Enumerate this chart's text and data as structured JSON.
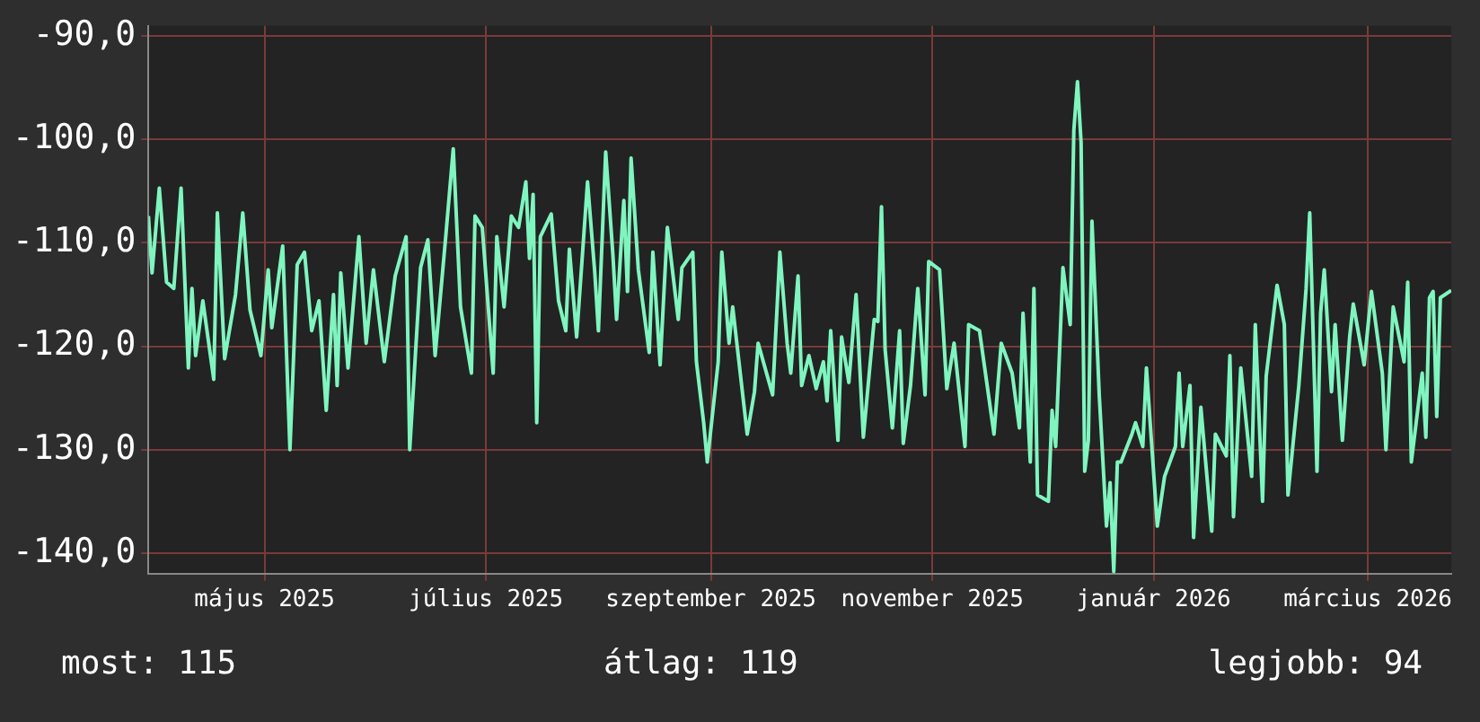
{
  "chart_data": {
    "type": "line",
    "annotations": [
      "most: 115",
      "átlag: 119",
      "legjobb: 94"
    ],
    "xlim": [
      "2025-03-30",
      "2026-03-24"
    ],
    "xticks": [
      {
        "value": "2025-05-01",
        "label": "május 2025"
      },
      {
        "value": "2025-07-01",
        "label": "július 2025"
      },
      {
        "value": "2025-09-01",
        "label": "szeptember 2025"
      },
      {
        "value": "2025-11-01",
        "label": "november 2025"
      },
      {
        "value": "2026-01-01",
        "label": "január 2026"
      },
      {
        "value": "2026-03-01",
        "label": "március 2026"
      }
    ],
    "ylim": [
      -142,
      -89
    ],
    "yticks": [
      {
        "value": -90,
        "label": "-90,0"
      },
      {
        "value": -100,
        "label": "-100,0"
      },
      {
        "value": -110,
        "label": "-110,0"
      },
      {
        "value": -120,
        "label": "-120,0"
      },
      {
        "value": -130,
        "label": "-130,0"
      },
      {
        "value": -140,
        "label": "-140,0"
      }
    ],
    "grid": true,
    "legend": false,
    "marker": "none",
    "line_style": "solid",
    "x": [
      "2025-03-30",
      "2025-03-31",
      "2025-04-02",
      "2025-04-04",
      "2025-04-06",
      "2025-04-08",
      "2025-04-10",
      "2025-04-11",
      "2025-04-12",
      "2025-04-14",
      "2025-04-17",
      "2025-04-18",
      "2025-04-20",
      "2025-04-23",
      "2025-04-25",
      "2025-04-27",
      "2025-04-30",
      "2025-05-02",
      "2025-05-03",
      "2025-05-06",
      "2025-05-08",
      "2025-05-10",
      "2025-05-12",
      "2025-05-14",
      "2025-05-16",
      "2025-05-18",
      "2025-05-20",
      "2025-05-21",
      "2025-05-22",
      "2025-05-24",
      "2025-05-27",
      "2025-05-29",
      "2025-05-31",
      "2025-06-03",
      "2025-06-06",
      "2025-06-09",
      "2025-06-10",
      "2025-06-13",
      "2025-06-15",
      "2025-06-17",
      "2025-06-20",
      "2025-06-22",
      "2025-06-24",
      "2025-06-27",
      "2025-06-28",
      "2025-06-30",
      "2025-07-03",
      "2025-07-04",
      "2025-07-06",
      "2025-07-08",
      "2025-07-10",
      "2025-07-12",
      "2025-07-13",
      "2025-07-14",
      "2025-07-15",
      "2025-07-16",
      "2025-07-19",
      "2025-07-21",
      "2025-07-23",
      "2025-07-24",
      "2025-07-26",
      "2025-07-29",
      "2025-07-31",
      "2025-08-01",
      "2025-08-03",
      "2025-08-05",
      "2025-08-06",
      "2025-08-08",
      "2025-08-09",
      "2025-08-10",
      "2025-08-12",
      "2025-08-15",
      "2025-08-16",
      "2025-08-18",
      "2025-08-20",
      "2025-08-23",
      "2025-08-24",
      "2025-08-27",
      "2025-08-28",
      "2025-08-30",
      "2025-08-31",
      "2025-09-03",
      "2025-09-04",
      "2025-09-06",
      "2025-09-07",
      "2025-09-11",
      "2025-09-13",
      "2025-09-14",
      "2025-09-18",
      "2025-09-20",
      "2025-09-22",
      "2025-09-23",
      "2025-09-25",
      "2025-09-26",
      "2025-09-28",
      "2025-09-30",
      "2025-10-02",
      "2025-10-03",
      "2025-10-04",
      "2025-10-06",
      "2025-10-07",
      "2025-10-09",
      "2025-10-11",
      "2025-10-13",
      "2025-10-16",
      "2025-10-17",
      "2025-10-18",
      "2025-10-19",
      "2025-10-21",
      "2025-10-23",
      "2025-10-24",
      "2025-10-26",
      "2025-10-28",
      "2025-10-30",
      "2025-10-31",
      "2025-11-03",
      "2025-11-05",
      "2025-11-07",
      "2025-11-10",
      "2025-11-11",
      "2025-11-14",
      "2025-11-16",
      "2025-11-18",
      "2025-11-20",
      "2025-11-23",
      "2025-11-25",
      "2025-11-26",
      "2025-11-28",
      "2025-11-29",
      "2025-11-30",
      "2025-12-03",
      "2025-12-04",
      "2025-12-05",
      "2025-12-07",
      "2025-12-09",
      "2025-12-10",
      "2025-12-11",
      "2025-12-12",
      "2025-12-13",
      "2025-12-14",
      "2025-12-15",
      "2025-12-17",
      "2025-12-19",
      "2025-12-20",
      "2025-12-21",
      "2025-12-22",
      "2025-12-23",
      "2025-12-26",
      "2025-12-27",
      "2025-12-29",
      "2025-12-30",
      "2026-01-02",
      "2026-01-04",
      "2026-01-07",
      "2026-01-08",
      "2026-01-09",
      "2026-01-11",
      "2026-01-12",
      "2026-01-14",
      "2026-01-17",
      "2026-01-18",
      "2026-01-21",
      "2026-01-22",
      "2026-01-23",
      "2026-01-25",
      "2026-01-28",
      "2026-01-29",
      "2026-01-31",
      "2026-02-01",
      "2026-02-04",
      "2026-02-06",
      "2026-02-07",
      "2026-02-10",
      "2026-02-12",
      "2026-02-13",
      "2026-02-15",
      "2026-02-16",
      "2026-02-17",
      "2026-02-19",
      "2026-02-20",
      "2026-02-22",
      "2026-02-24",
      "2026-02-25",
      "2026-02-28",
      "2026-03-02",
      "2026-03-05",
      "2026-03-06",
      "2026-03-08",
      "2026-03-11",
      "2026-03-12",
      "2026-03-13",
      "2026-03-16",
      "2026-03-17",
      "2026-03-18",
      "2026-03-19",
      "2026-03-20",
      "2026-03-21",
      "2026-03-24"
    ],
    "series": [
      {
        "color": "#7ff5bf",
        "values": [
          -107.4,
          -112.9,
          -104.7,
          -113.8,
          -114.4,
          -104.7,
          -122.1,
          -114.4,
          -120.9,
          -115.6,
          -123.2,
          -107.1,
          -121.2,
          -115,
          -107.1,
          -116.5,
          -120.9,
          -112.6,
          -118.2,
          -110.3,
          -130,
          -112.1,
          -110.9,
          -118.5,
          -115.6,
          -126.2,
          -115,
          -123.8,
          -112.9,
          -122.1,
          -109.4,
          -119.7,
          -112.6,
          -121.5,
          -113.2,
          -109.4,
          -130,
          -112.4,
          -109.7,
          -120.9,
          -109.1,
          -100.9,
          -116.2,
          -122.6,
          -107.4,
          -108.5,
          -122.6,
          -109.4,
          -116.2,
          -107.4,
          -108.5,
          -104.1,
          -111.5,
          -105.3,
          -127.4,
          -109.4,
          -107.2,
          -115.6,
          -118.5,
          -110.6,
          -119.1,
          -104.1,
          -112.9,
          -118.5,
          -101.2,
          -111.2,
          -117.4,
          -105.9,
          -114.7,
          -101.8,
          -112.6,
          -120.6,
          -110.9,
          -121.8,
          -108.5,
          -117.4,
          -112.4,
          -110.9,
          -121.5,
          -127.4,
          -131.2,
          -121.5,
          -110.9,
          -119.7,
          -116.2,
          -128.5,
          -124.4,
          -119.7,
          -124.7,
          -110.9,
          -119.7,
          -122.6,
          -113.2,
          -123.8,
          -120.9,
          -124.1,
          -121.5,
          -125.3,
          -118.5,
          -129.1,
          -119.1,
          -123.5,
          -115,
          -128.8,
          -117.4,
          -117.6,
          -106.5,
          -120.3,
          -127.9,
          -118.5,
          -129.4,
          -123.8,
          -114.4,
          -124.7,
          -111.8,
          -112.6,
          -124.1,
          -119.7,
          -129.7,
          -117.9,
          -118.5,
          -123.5,
          -128.5,
          -119.7,
          -122.6,
          -127.9,
          -116.8,
          -131.2,
          -114.4,
          -134.4,
          -135,
          -126.2,
          -129.7,
          -112.4,
          -117.9,
          -99.1,
          -94.4,
          -100.3,
          -132.1,
          -129.1,
          -107.9,
          -124.7,
          -137.4,
          -133.2,
          -141.8,
          -131.2,
          -131.2,
          -128.5,
          -127.4,
          -129.7,
          -122.1,
          -137.4,
          -132.6,
          -129.7,
          -122.6,
          -129.7,
          -123.8,
          -138.5,
          -125.9,
          -137.9,
          -128.5,
          -130.6,
          -120.9,
          -136.5,
          -122.1,
          -132.6,
          -117.9,
          -135,
          -122.9,
          -114.1,
          -117.9,
          -134.4,
          -123.8,
          -114.4,
          -107.1,
          -132.1,
          -116.8,
          -112.6,
          -124.4,
          -117.9,
          -129.1,
          -119.1,
          -115.9,
          -121.8,
          -114.7,
          -122.6,
          -130,
          -116.2,
          -121.5,
          -113.8,
          -131.2,
          -122.6,
          -128.8,
          -115.3,
          -114.7,
          -126.8,
          -115.3,
          -114.6
        ]
      }
    ]
  }
}
